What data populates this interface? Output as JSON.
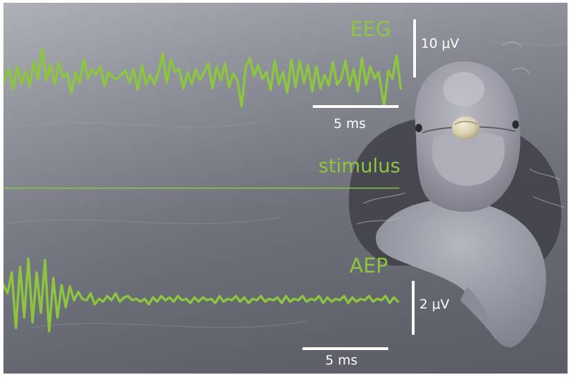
{
  "panel": {
    "eeg_label": "EEG",
    "stimulus_label": "stimulus",
    "aep_label": "AEP",
    "eeg_scale_amplitude": "10 μV",
    "eeg_scale_time": "5 ms",
    "aep_scale_amplitude": "2 μV",
    "aep_scale_time": "5 ms"
  },
  "colors": {
    "trace": "#8cc63f",
    "scale_bar": "#ffffff",
    "water": "#6e7079"
  },
  "photo": {
    "subject": "dolphin-head-above-water-with-suction-cup-electrode"
  }
}
